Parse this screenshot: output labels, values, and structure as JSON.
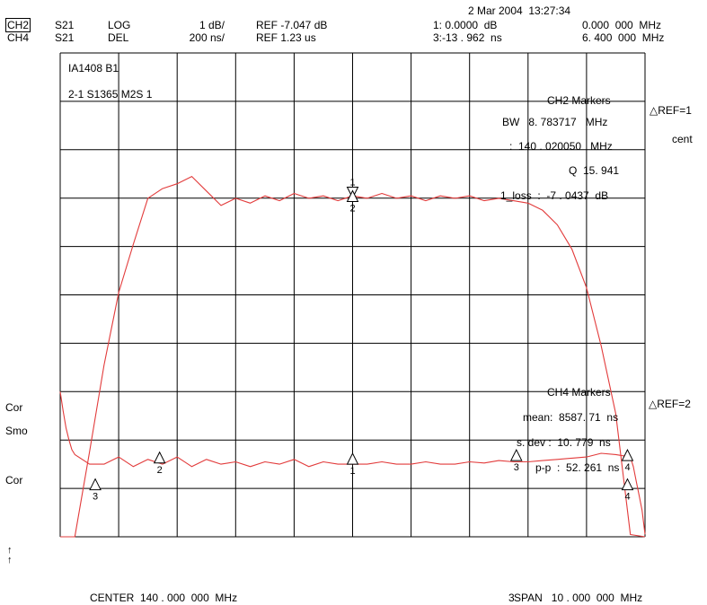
{
  "header": {
    "datetime": "2 Mar 2004  13:27:34",
    "row1": {
      "channel": "CH2",
      "param": "S21",
      "format": "LOG",
      "scale": "1 dB/",
      "ref": "REF -7.047 dB",
      "marker_value": "1: 0.0000  dB",
      "marker_freq": "0.000  000  MHz"
    },
    "row2": {
      "channel": "CH4",
      "param": "S21",
      "format": "DEL",
      "scale": "200 ns/",
      "ref": "REF 1.23 us",
      "marker_value": "3:-13 . 962  ns",
      "marker_freq": "6. 400  000  MHz"
    }
  },
  "labels": {
    "title1": "IA1408 B1",
    "title2": "2-1 S1365 M2S 1"
  },
  "ch2_markers": {
    "heading": "CH2 Markers",
    "bw": "BW   8. 783717   MHz",
    "center": ":  140 . 020050   MHz",
    "q": "Q  15. 941",
    "loss": "1_loss  :  -7 . 0437  dB",
    "ref_mode": "△REF=1",
    "cent": "cent"
  },
  "ch4_markers": {
    "heading": "CH4 Markers",
    "mean": "mean:  8587. 71  ns",
    "sdev": "s. dev :  10. 779  ns",
    "pp": "p-p  :  52. 261  ns",
    "ref_mode": "△REF=2"
  },
  "side": {
    "cor1": "Cor",
    "smo": "Smo",
    "cor2": "Cor",
    "arrow1": "↑",
    "arrow2": "↑"
  },
  "footer": {
    "center": "CENTER  140 . 000  000  MHz",
    "span": "SPAN   10 . 000  000  MHz",
    "span_prefix": "3"
  },
  "chart_data": {
    "type": "line",
    "xlabel": "",
    "ylabel": "",
    "center_mhz": 140.0,
    "span_mhz": 10.0,
    "xlim": [
      135.0,
      145.0
    ],
    "grid": true,
    "divisions": {
      "x": 10,
      "y": 10
    },
    "trace_color": "#e23b3b",
    "series": [
      {
        "name": "CH2",
        "unit": "dB",
        "ref_value": -7.047,
        "scale_per_div": 1,
        "x": [
          135.0,
          135.25,
          135.5,
          135.75,
          136.0,
          136.25,
          136.5,
          136.75,
          137.0,
          137.25,
          137.5,
          137.75,
          138.0,
          138.25,
          138.5,
          138.75,
          139.0,
          139.25,
          139.5,
          139.75,
          140.0,
          140.25,
          140.5,
          140.75,
          141.0,
          141.25,
          141.5,
          141.75,
          142.0,
          142.25,
          142.5,
          142.75,
          143.0,
          143.25,
          143.5,
          143.75,
          144.0,
          144.25,
          144.5,
          144.75,
          145.0
        ],
        "y": [
          -17.0,
          -14.6,
          -12.3,
          -10.5,
          -9.0,
          -8.0,
          -7.05,
          -6.85,
          -6.75,
          -6.6,
          -6.9,
          -7.2,
          -7.05,
          -7.15,
          -7.0,
          -7.1,
          -6.95,
          -7.05,
          -7.0,
          -7.1,
          -7.0,
          -7.05,
          -6.95,
          -7.05,
          -7.0,
          -7.1,
          -7.0,
          -7.05,
          -7.0,
          -7.1,
          -7.05,
          -7.1,
          -7.15,
          -7.3,
          -7.6,
          -8.1,
          -8.9,
          -10.1,
          -11.5,
          -14.0,
          -17.0
        ]
      },
      {
        "name": "CH4",
        "unit": "ns",
        "ref_value": 1230,
        "scale_per_div": 200,
        "x": [
          135.0,
          135.05,
          135.1,
          135.15,
          135.2,
          135.25,
          135.5,
          135.75,
          136.0,
          136.25,
          136.5,
          136.75,
          137.0,
          137.25,
          137.5,
          137.75,
          138.0,
          138.25,
          138.5,
          138.75,
          139.0,
          139.25,
          139.5,
          139.75,
          140.0,
          140.25,
          140.5,
          140.75,
          141.0,
          141.25,
          141.5,
          141.75,
          142.0,
          142.25,
          142.5,
          142.75,
          143.0,
          143.25,
          143.5,
          143.75,
          144.0,
          144.25,
          144.5,
          144.75,
          144.8,
          144.85,
          144.9,
          144.95,
          145.0
        ],
        "y": [
          1230,
          1150,
          1080,
          1030,
          990,
          970,
          930,
          930,
          960,
          920,
          950,
          930,
          960,
          920,
          950,
          930,
          940,
          920,
          940,
          930,
          950,
          920,
          940,
          930,
          930,
          930,
          940,
          930,
          930,
          940,
          930,
          930,
          940,
          935,
          945,
          940,
          940,
          945,
          950,
          955,
          960,
          975,
          970,
          960,
          920,
          860,
          800,
          740,
          640
        ]
      }
    ],
    "markers": [
      {
        "channel": "CH2",
        "id": "1",
        "x": 140.0,
        "y": -7.0437
      },
      {
        "channel": "CH2",
        "id": "2",
        "x": 140.0,
        "y": -7.0437
      },
      {
        "channel": "CH2",
        "id": "3",
        "x": 135.6,
        "y": -13.0
      },
      {
        "channel": "CH2",
        "id": "4",
        "x": 144.7,
        "y": -13.0
      },
      {
        "channel": "CH4",
        "id": "1",
        "x": 140.0,
        "y": 945
      },
      {
        "channel": "CH4",
        "id": "2",
        "x": 136.7,
        "y": 950
      },
      {
        "channel": "CH4",
        "id": "3",
        "x": 142.8,
        "y": 960
      },
      {
        "channel": "CH4",
        "id": "4",
        "x": 144.7,
        "y": 960
      }
    ]
  }
}
